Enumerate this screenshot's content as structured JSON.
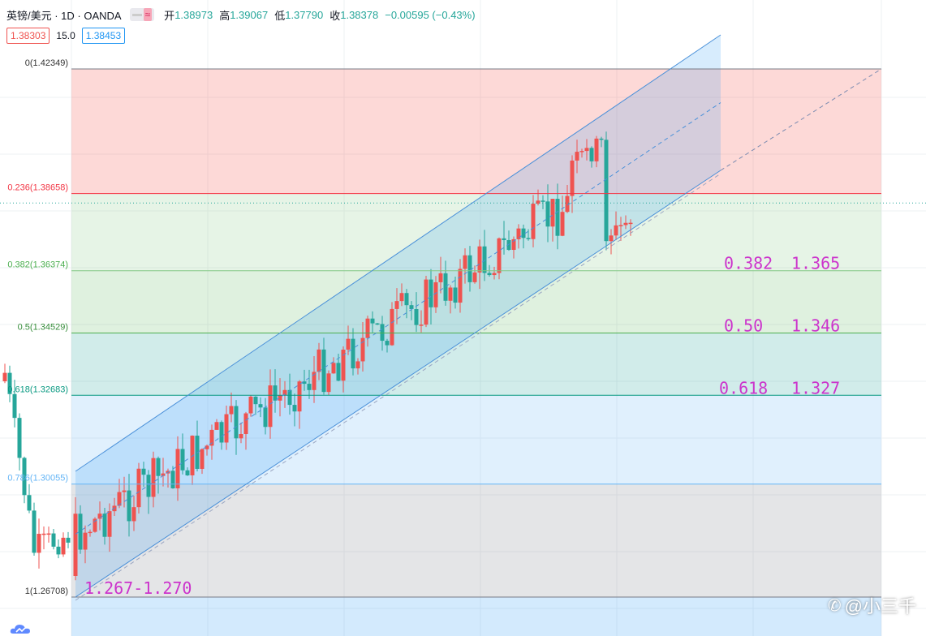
{
  "header": {
    "symbol": "英镑/美元 · 1D · OANDA",
    "open_label": "开",
    "open": "1.38973",
    "high_label": "高",
    "high": "1.39067",
    "low_label": "低",
    "low": "1.37790",
    "close_label": "收",
    "close": "1.38378",
    "change": "−0.00595 (−0.43%)",
    "toggle_symbol": "≈"
  },
  "spread": {
    "sell": "1.38303",
    "mid": "15.0",
    "buy": "1.38453"
  },
  "watermark": {
    "text": "@小三千",
    "icon": "weibo-icon"
  },
  "colors": {
    "up": "#26a69a",
    "down": "#ef5350",
    "channel": "#4a90d9",
    "annotation": "#cc33cc",
    "grid": "#eef0f3"
  },
  "chart_data": {
    "type": "candlestick",
    "y_range": [
      1.263,
      1.434
    ],
    "fib_levels": [
      {
        "ratio": "0",
        "price": 1.42349,
        "label": "0(1.42349)",
        "line_color": "#787b86",
        "fill": "rgba(244,67,54,0.20)",
        "label_color": "#333333"
      },
      {
        "ratio": "0.236",
        "price": 1.38658,
        "label": "0.236(1.38658)",
        "line_color": "#f23645",
        "fill": "rgba(129,199,132,0.20)",
        "label_color": "#f23645"
      },
      {
        "ratio": "0.382",
        "price": 1.36374,
        "label": "0.382(1.36374)",
        "line_color": "#81c784",
        "fill": "rgba(76,175,80,0.18)",
        "label_color": "#4caf50"
      },
      {
        "ratio": "0.5",
        "price": 1.34529,
        "label": "0.5(1.34529)",
        "line_color": "#4caf50",
        "fill": "rgba(0,150,136,0.18)",
        "label_color": "#388e3c"
      },
      {
        "ratio": "0.618",
        "price": 1.32683,
        "label": "0.618(1.32683)",
        "line_color": "#089981",
        "fill": "rgba(100,181,246,0.20)",
        "label_color": "#089981"
      },
      {
        "ratio": "0.786",
        "price": 1.30055,
        "label": "0.786(1.30055)",
        "line_color": "#64b5f6",
        "fill": "rgba(120,123,134,0.20)",
        "label_color": "#64b5f6"
      },
      {
        "ratio": "1",
        "price": 1.26708,
        "label": "1(1.26708)",
        "line_color": "#787b86",
        "fill": "rgba(33,150,243,0.20)",
        "label_color": "#333333"
      }
    ],
    "annotations": [
      {
        "text_ratio": "0.382",
        "text_price": "1.365"
      },
      {
        "text_ratio": "0.50",
        "text_price": "1.346"
      },
      {
        "text_ratio": "0.618",
        "text_price": "1.327"
      }
    ],
    "target_label": "1.267-1.270",
    "last_price": 1.38378,
    "candles": []
  }
}
